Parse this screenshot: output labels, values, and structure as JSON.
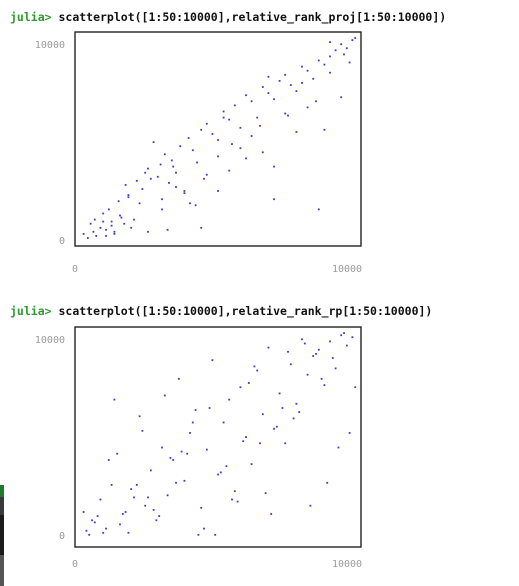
{
  "terminal": {
    "prompt": "julia>",
    "accent_color": "#2e9a2e",
    "commands": [
      " scatterplot([1:50:10000],relative_rank_proj[1:50:10000])",
      " scatterplot([1:50:10000],relative_rank_rp[1:50:10000])"
    ]
  },
  "chart_data": [
    {
      "type": "scatter",
      "title": "",
      "xlabel": "",
      "ylabel": "",
      "xlim": [
        0,
        10000
      ],
      "ylim": [
        0,
        10000
      ],
      "x_tick_labels": [
        "0",
        "10000"
      ],
      "y_tick_labels": [
        "0",
        "10000"
      ],
      "color": "#3b3bcc",
      "grid": false,
      "x": [
        200,
        350,
        450,
        550,
        650,
        800,
        900,
        1000,
        1100,
        1200,
        1300,
        1450,
        1550,
        1650,
        1800,
        1900,
        2100,
        2300,
        2500,
        2700,
        2850,
        2950,
        3100,
        3250,
        3350,
        3500,
        3650,
        3800,
        3950,
        4100,
        4250,
        4400,
        4600,
        4800,
        5000,
        5200,
        5400,
        5600,
        5800,
        6000,
        6200,
        6400,
        6600,
        6800,
        7000,
        7200,
        7400,
        7600,
        7800,
        8000,
        8200,
        8400,
        8600,
        8800,
        9000,
        9200,
        9400,
        9600,
        9800,
        9900,
        600,
        900,
        1300,
        1700,
        2200,
        2600,
        3000,
        3400,
        3800,
        4200,
        4600,
        5000,
        5400,
        5800,
        6200,
        6600,
        7000,
        7400,
        7800,
        8200,
        8600,
        9000,
        9400,
        9700,
        1500,
        2500,
        3500,
        4500,
        5500,
        6500,
        7500,
        8500,
        9500,
        1000,
        2000,
        3000,
        4000,
        5000,
        6000,
        7000,
        8000,
        9000,
        1200,
        1800,
        2400,
        3200,
        4400,
        5200,
        6800,
        8800
      ],
      "y": [
        300,
        100,
        800,
        400,
        200,
        600,
        900,
        500,
        1500,
        700,
        300,
        1900,
        1100,
        800,
        2200,
        600,
        2900,
        2500,
        3500,
        4800,
        3100,
        3700,
        4200,
        2800,
        3900,
        3300,
        4600,
        2400,
        5000,
        4400,
        3800,
        5400,
        5700,
        5200,
        4900,
        6300,
        5900,
        6600,
        5500,
        7100,
        6800,
        6000,
        7500,
        7200,
        6900,
        7800,
        8100,
        7600,
        7300,
        8500,
        8300,
        7900,
        8800,
        8600,
        9000,
        9300,
        9600,
        9400,
        9800,
        9900,
        1000,
        1300,
        400,
        2700,
        1800,
        3000,
        2000,
        3600,
        2300,
        1700,
        3200,
        4100,
        3400,
        4500,
        5100,
        4300,
        2000,
        6200,
        5300,
        6500,
        1500,
        8200,
        7000,
        8700,
        1200,
        400,
        2600,
        3000,
        4700,
        5600,
        6100,
        6800,
        9100,
        200,
        1000,
        1500,
        1800,
        2400,
        4000,
        3600,
        7700,
        9700,
        900,
        2100,
        3300,
        500,
        600,
        6000,
        8000,
        5400
      ]
    },
    {
      "type": "scatter",
      "title": "",
      "xlabel": "",
      "ylabel": "",
      "xlim": [
        0,
        10000
      ],
      "ylim": [
        0,
        10000
      ],
      "x_tick_labels": [
        "0",
        "10000"
      ],
      "y_tick_labels": [
        "0",
        "10000"
      ],
      "color": "#3b3bcc",
      "grid": false,
      "x": [
        200,
        400,
        600,
        800,
        1000,
        1200,
        1400,
        1600,
        1800,
        2000,
        2200,
        2400,
        2600,
        2800,
        3000,
        3200,
        3400,
        3600,
        3800,
        4000,
        4200,
        4400,
        4600,
        4800,
        5000,
        5200,
        5400,
        5600,
        5800,
        6000,
        6200,
        6400,
        6600,
        6800,
        7000,
        7200,
        7400,
        7600,
        7800,
        8000,
        8200,
        8400,
        8600,
        8800,
        9000,
        9200,
        9400,
        9600,
        9800,
        9900,
        300,
        700,
        1100,
        1500,
        1900,
        2300,
        2700,
        3100,
        3500,
        3900,
        4300,
        4700,
        5100,
        5500,
        5900,
        6300,
        6700,
        7100,
        7500,
        7900,
        8300,
        8700,
        9100,
        9500,
        500,
        1300,
        2100,
        2900,
        3700,
        4500,
        5300,
        6100,
        6900,
        7700,
        8500,
        9300,
        900,
        2500,
        4100,
        5700,
        7300,
        8900,
        1700,
        3300,
        4900,
        6500,
        8100,
        9700
      ],
      "y": [
        1300,
        200,
        800,
        1900,
        500,
        2600,
        4100,
        1200,
        300,
        2000,
        5900,
        1600,
        3300,
        900,
        4400,
        2100,
        3800,
        7700,
        2800,
        5100,
        6200,
        1500,
        4300,
        8600,
        3100,
        5600,
        6700,
        2300,
        7300,
        4900,
        3600,
        8100,
        6000,
        9200,
        5300,
        7000,
        4600,
        8400,
        6500,
        9600,
        7900,
        8800,
        9100,
        7400,
        9500,
        8200,
        9800,
        9300,
        9700,
        7300,
        400,
        1100,
        3800,
        700,
        2400,
        5200,
        1400,
        6900,
        2700,
        4100,
        200,
        6300,
        3200,
        1900,
        4700,
        8300,
        2200,
        5400,
        9000,
        6100,
        1600,
        7700,
        8700,
        9900,
        900,
        6700,
        2600,
        1100,
        4200,
        500,
        3500,
        7500,
        1200,
        5800,
        8900,
        4400,
        300,
        2000,
        5600,
        1800,
        6300,
        2700,
        1300,
        3900,
        200,
        4600,
        9400,
        5100
      ]
    }
  ]
}
